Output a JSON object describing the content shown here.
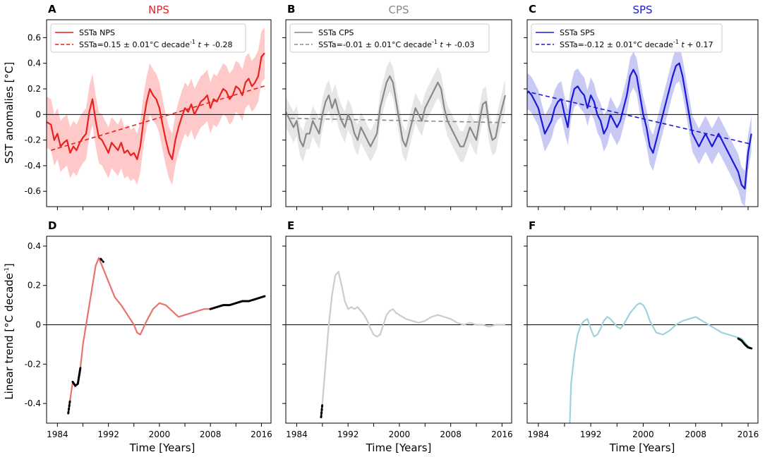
{
  "figure": {
    "x_axis_label": "Time [Years]",
    "y_axis_label_top": "SST anomalies [°C]",
    "y_axis_label_bottom": "Linear trend [°C decade",
    "y_axis_label_bottom_sup": "-1",
    "y_axis_label_bottom_tail": "]"
  },
  "chart_data": [
    {
      "panel": "A",
      "title": "NPS",
      "color": "#e8221e",
      "band_color": "#ffc9c9",
      "type": "line",
      "xlim": [
        1982.3,
        2017.5
      ],
      "ylim": [
        -0.72,
        0.74
      ],
      "yticks": [
        -0.6,
        -0.4,
        -0.2,
        0,
        0.2,
        0.4,
        0.6
      ],
      "ytick_labels": [
        "-0.6",
        "-0.4",
        "-0.2",
        "0",
        "0.2",
        "0.4",
        "0.6"
      ],
      "xticks": [
        1984,
        1988,
        1992,
        1996,
        2000,
        2004,
        2008,
        2012,
        2016
      ],
      "xtick_labels": [],
      "legend": {
        "series_label": "SSTa NPS",
        "fit_prefix": "SSTa=0.15 ± 0.01°C decade",
        "fit_sup": "-1",
        "fit_var": "t",
        "fit_suffix": " + -0.28"
      },
      "series": {
        "x": [
          1982.0,
          1983.0,
          1983.5,
          1984.0,
          1984.5,
          1985.0,
          1985.5,
          1986.0,
          1986.5,
          1987.0,
          1987.5,
          1988.0,
          1988.5,
          1989.0,
          1989.5,
          1990.0,
          1990.5,
          1991.0,
          1991.5,
          1992.0,
          1992.5,
          1993.0,
          1993.5,
          1994.0,
          1994.5,
          1995.0,
          1995.5,
          1996.0,
          1996.5,
          1997.0,
          1997.5,
          1998.0,
          1998.5,
          1999.0,
          1999.5,
          2000.0,
          2000.5,
          2001.0,
          2001.5,
          2002.0,
          2002.5,
          2003.0,
          2003.5,
          2004.0,
          2004.5,
          2005.0,
          2005.5,
          2006.0,
          2006.5,
          2007.0,
          2007.5,
          2008.0,
          2008.5,
          2009.0,
          2009.5,
          2010.0,
          2010.5,
          2011.0,
          2011.5,
          2012.0,
          2012.5,
          2013.0,
          2013.5,
          2014.0,
          2014.5,
          2015.0,
          2015.5,
          2016.0,
          2016.5
        ],
        "y": [
          -0.05,
          -0.08,
          -0.2,
          -0.15,
          -0.25,
          -0.22,
          -0.2,
          -0.3,
          -0.25,
          -0.28,
          -0.22,
          -0.18,
          -0.15,
          0.02,
          0.12,
          -0.05,
          -0.18,
          -0.2,
          -0.25,
          -0.3,
          -0.22,
          -0.25,
          -0.28,
          -0.22,
          -0.3,
          -0.28,
          -0.32,
          -0.3,
          -0.35,
          -0.25,
          -0.05,
          0.1,
          0.2,
          0.15,
          0.12,
          0.05,
          -0.08,
          -0.2,
          -0.3,
          -0.35,
          -0.2,
          -0.1,
          -0.02,
          0.05,
          0.02,
          0.08,
          0.0,
          0.05,
          0.1,
          0.12,
          0.15,
          0.05,
          0.12,
          0.1,
          0.15,
          0.2,
          0.18,
          0.12,
          0.15,
          0.22,
          0.2,
          0.15,
          0.25,
          0.28,
          0.22,
          0.25,
          0.3,
          0.45,
          0.48
        ],
        "band_width": 0.2
      },
      "fit": {
        "slope_per_decade": 0.15,
        "intercept": -0.28,
        "x_start": 1983.0,
        "x_end": 2016.5
      }
    },
    {
      "panel": "B",
      "title": "CPS",
      "color": "#888888",
      "band_color": "#e6e6e6",
      "type": "line",
      "xlim": [
        1982.3,
        2017.5
      ],
      "ylim": [
        -0.72,
        0.74
      ],
      "yticks": [
        -0.6,
        -0.4,
        -0.2,
        0,
        0.2,
        0.4,
        0.6
      ],
      "ytick_labels": [],
      "xticks": [
        1984,
        1988,
        1992,
        1996,
        2000,
        2004,
        2008,
        2012,
        2016
      ],
      "xtick_labels": [],
      "legend": {
        "series_label": "SSTa CPS",
        "fit_prefix": "SSTa=-0.01 ± 0.01°C decade",
        "fit_sup": "-1",
        "fit_var": "t",
        "fit_suffix": " + -0.03"
      },
      "series": {
        "x": [
          1982.0,
          1982.5,
          1983.0,
          1983.5,
          1984.0,
          1984.5,
          1985.0,
          1985.5,
          1986.0,
          1986.5,
          1987.0,
          1987.5,
          1988.0,
          1988.5,
          1989.0,
          1989.5,
          1990.0,
          1990.5,
          1991.0,
          1991.5,
          1992.0,
          1992.5,
          1993.0,
          1993.5,
          1994.0,
          1994.5,
          1995.0,
          1995.5,
          1996.0,
          1996.5,
          1997.0,
          1997.5,
          1998.0,
          1998.5,
          1999.0,
          1999.5,
          2000.0,
          2000.5,
          2001.0,
          2001.5,
          2002.0,
          2002.5,
          2003.0,
          2003.5,
          2004.0,
          2004.5,
          2005.0,
          2005.5,
          2006.0,
          2006.5,
          2007.0,
          2007.5,
          2008.0,
          2008.5,
          2009.0,
          2009.5,
          2010.0,
          2010.5,
          2011.0,
          2011.5,
          2012.0,
          2012.5,
          2013.0,
          2013.5,
          2014.0,
          2014.5,
          2015.0,
          2015.5,
          2016.0,
          2016.5
        ],
        "y": [
          0.05,
          0.0,
          -0.05,
          -0.1,
          -0.05,
          -0.2,
          -0.25,
          -0.15,
          -0.15,
          -0.05,
          -0.1,
          -0.15,
          0.0,
          0.1,
          0.15,
          0.05,
          0.12,
          0.02,
          -0.05,
          -0.1,
          0.0,
          -0.05,
          -0.15,
          -0.2,
          -0.1,
          -0.15,
          -0.2,
          -0.25,
          -0.2,
          -0.15,
          0.05,
          0.15,
          0.25,
          0.3,
          0.25,
          0.1,
          -0.05,
          -0.2,
          -0.25,
          -0.15,
          -0.05,
          0.05,
          0.0,
          -0.05,
          0.05,
          0.1,
          0.15,
          0.2,
          0.25,
          0.2,
          0.05,
          -0.05,
          -0.1,
          -0.15,
          -0.2,
          -0.25,
          -0.25,
          -0.18,
          -0.1,
          -0.15,
          -0.2,
          -0.05,
          0.08,
          0.1,
          -0.1,
          -0.2,
          -0.18,
          -0.05,
          0.05,
          0.15
        ],
        "band_width": 0.12
      },
      "fit": {
        "slope_per_decade": -0.01,
        "intercept": -0.03,
        "x_start": 1983.0,
        "x_end": 2016.5
      }
    },
    {
      "panel": "C",
      "title": "SPS",
      "color": "#1a1ad6",
      "band_color": "#c9c9f5",
      "type": "line",
      "xlim": [
        1982.3,
        2017.5
      ],
      "ylim": [
        -0.72,
        0.74
      ],
      "yticks": [
        -0.6,
        -0.4,
        -0.2,
        0,
        0.2,
        0.4,
        0.6
      ],
      "ytick_labels": [],
      "xticks": [
        1984,
        1988,
        1992,
        1996,
        2000,
        2004,
        2008,
        2012,
        2016
      ],
      "xtick_labels": [],
      "legend": {
        "series_label": "SSTa SPS",
        "fit_prefix": "SSTa=-0.12 ± 0.01°C decade",
        "fit_sup": "-1",
        "fit_var": "t",
        "fit_suffix": " + 0.17"
      },
      "series": {
        "x": [
          1982.0,
          1982.5,
          1983.0,
          1983.5,
          1984.0,
          1984.5,
          1985.0,
          1985.5,
          1986.0,
          1986.5,
          1987.0,
          1987.5,
          1988.0,
          1988.5,
          1989.0,
          1989.5,
          1990.0,
          1990.5,
          1991.0,
          1991.5,
          1992.0,
          1992.5,
          1993.0,
          1993.5,
          1994.0,
          1994.5,
          1995.0,
          1995.5,
          1996.0,
          1996.5,
          1997.0,
          1997.5,
          1998.0,
          1998.5,
          1999.0,
          1999.5,
          2000.0,
          2000.5,
          2001.0,
          2001.5,
          2002.0,
          2002.5,
          2003.0,
          2003.5,
          2004.0,
          2004.5,
          2005.0,
          2005.5,
          2006.0,
          2006.5,
          2007.0,
          2007.5,
          2008.0,
          2008.5,
          2009.0,
          2009.5,
          2010.0,
          2010.5,
          2011.0,
          2011.5,
          2012.0,
          2012.5,
          2013.0,
          2013.5,
          2014.0,
          2014.5,
          2015.0,
          2015.5,
          2016.0,
          2016.5
        ],
        "y": [
          0.15,
          0.18,
          0.15,
          0.1,
          0.05,
          -0.05,
          -0.15,
          -0.1,
          -0.05,
          0.05,
          0.1,
          0.12,
          0.0,
          -0.1,
          0.1,
          0.2,
          0.22,
          0.18,
          0.15,
          0.05,
          0.15,
          0.1,
          0.0,
          -0.05,
          -0.15,
          -0.1,
          0.0,
          -0.05,
          -0.1,
          -0.05,
          0.05,
          0.15,
          0.3,
          0.35,
          0.3,
          0.15,
          0.0,
          -0.1,
          -0.25,
          -0.3,
          -0.2,
          -0.1,
          0.0,
          0.1,
          0.2,
          0.3,
          0.38,
          0.4,
          0.3,
          0.15,
          0.0,
          -0.15,
          -0.2,
          -0.25,
          -0.2,
          -0.15,
          -0.2,
          -0.25,
          -0.2,
          -0.15,
          -0.2,
          -0.25,
          -0.3,
          -0.35,
          -0.4,
          -0.45,
          -0.55,
          -0.58,
          -0.3,
          -0.15
        ],
        "band_width": 0.14
      },
      "fit": {
        "slope_per_decade": -0.12,
        "intercept": 0.17,
        "x_start": 1983.0,
        "x_end": 2016.5
      }
    },
    {
      "panel": "D",
      "title": "",
      "color": "#e8726d",
      "highlight_color": "#000000",
      "type": "line",
      "xlim": [
        1982.3,
        2017.5
      ],
      "ylim": [
        -0.5,
        0.45
      ],
      "yticks": [
        -0.4,
        -0.2,
        0,
        0.2,
        0.4
      ],
      "ytick_labels": [
        "-0.4",
        "-0.2",
        "0",
        "0.2",
        "0.4"
      ],
      "xticks": [
        1984,
        1988,
        1992,
        1996,
        2000,
        2004,
        2008,
        2012,
        2016
      ],
      "xtick_labels": [
        "1984",
        "1992",
        "2000",
        "2008",
        "2016"
      ],
      "xtick_label_values": [
        1984,
        1992,
        2000,
        2008,
        2016
      ],
      "series": {
        "x": [
          1985.7,
          1986.0,
          1986.4,
          1986.8,
          1987.2,
          1987.6,
          1988.0,
          1988.5,
          1989.0,
          1989.5,
          1990.0,
          1990.5,
          1991.0,
          1991.5,
          1992.0,
          1992.5,
          1993.0,
          1994.0,
          1995.0,
          1996.0,
          1996.5,
          1997.0,
          1998.0,
          1999.0,
          2000.0,
          2001.0,
          2002.0,
          2003.0,
          2004.0,
          2005.0,
          2006.0,
          2007.0,
          2008.0,
          2009.0,
          2010.0,
          2011.0,
          2012.0,
          2013.0,
          2014.0,
          2015.0,
          2016.0,
          2016.5
        ],
        "y": [
          -0.45,
          -0.38,
          -0.29,
          -0.31,
          -0.3,
          -0.22,
          -0.1,
          0.0,
          0.1,
          0.2,
          0.3,
          0.34,
          0.3,
          0.26,
          0.22,
          0.18,
          0.14,
          0.1,
          0.05,
          0.0,
          -0.04,
          -0.05,
          0.02,
          0.08,
          0.11,
          0.1,
          0.07,
          0.04,
          0.05,
          0.06,
          0.07,
          0.08,
          0.08,
          0.09,
          0.1,
          0.1,
          0.11,
          0.12,
          0.12,
          0.13,
          0.14,
          0.145
        ]
      },
      "highlight": [
        {
          "x": [
            1985.7,
            1986.0
          ],
          "y": [
            -0.45,
            -0.38
          ]
        },
        {
          "x": [
            1986.4,
            1986.8,
            1987.2,
            1987.6
          ],
          "y": [
            -0.29,
            -0.31,
            -0.3,
            -0.22
          ]
        },
        {
          "x": [
            1990.8,
            1991.2
          ],
          "y": [
            0.335,
            0.32
          ]
        },
        {
          "x": [
            2008.0,
            2009.0,
            2010.0,
            2011.0,
            2012.0,
            2013.0,
            2014.0,
            2015.0,
            2016.0,
            2016.5
          ],
          "y": [
            0.08,
            0.09,
            0.1,
            0.1,
            0.11,
            0.12,
            0.12,
            0.13,
            0.14,
            0.145
          ]
        }
      ]
    },
    {
      "panel": "E",
      "title": "",
      "color": "#cccccc",
      "highlight_color": "#000000",
      "type": "line",
      "xlim": [
        1982.3,
        2017.5
      ],
      "ylim": [
        -0.5,
        0.45
      ],
      "yticks": [
        -0.4,
        -0.2,
        0,
        0.2,
        0.4
      ],
      "ytick_labels": [],
      "xticks": [
        1984,
        1988,
        1992,
        1996,
        2000,
        2004,
        2008,
        2012,
        2016
      ],
      "xtick_labels": [
        "1984",
        "1992",
        "2000",
        "2008",
        "2016"
      ],
      "xtick_label_values": [
        1984,
        1992,
        2000,
        2008,
        2016
      ],
      "series": {
        "x": [
          1987.8,
          1988.0,
          1988.5,
          1989.0,
          1989.5,
          1990.0,
          1990.5,
          1991.0,
          1991.5,
          1992.0,
          1992.5,
          1993.0,
          1993.5,
          1994.0,
          1994.5,
          1995.0,
          1995.5,
          1996.0,
          1996.5,
          1997.0,
          1997.5,
          1998.0,
          1998.5,
          1999.0,
          1999.5,
          2000.0,
          2001.0,
          2002.0,
          2003.0,
          2004.0,
          2005.0,
          2006.0,
          2007.0,
          2008.0,
          2009.0,
          2010.0,
          2011.0,
          2012.0,
          2013.0,
          2014.0,
          2015.0,
          2016.0,
          2016.5
        ],
        "y": [
          -0.47,
          -0.4,
          -0.2,
          0.0,
          0.15,
          0.25,
          0.27,
          0.2,
          0.12,
          0.08,
          0.09,
          0.08,
          0.09,
          0.07,
          0.05,
          0.02,
          -0.02,
          -0.05,
          -0.06,
          -0.05,
          0.0,
          0.05,
          0.07,
          0.08,
          0.06,
          0.05,
          0.03,
          0.02,
          0.01,
          0.02,
          0.04,
          0.05,
          0.04,
          0.03,
          0.01,
          0.0,
          0.01,
          0.0,
          0.0,
          -0.01,
          0.0,
          0.0,
          0.0
        ]
      },
      "highlight": [
        {
          "x": [
            1987.8,
            1988.0
          ],
          "y": [
            -0.47,
            -0.4
          ]
        }
      ]
    },
    {
      "panel": "F",
      "title": "",
      "color": "#9fd2e0",
      "highlight_color": "#000000",
      "type": "line",
      "xlim": [
        1982.3,
        2017.5
      ],
      "ylim": [
        -0.5,
        0.45
      ],
      "yticks": [
        -0.4,
        -0.2,
        0,
        0.2,
        0.4
      ],
      "ytick_labels": [],
      "xticks": [
        1984,
        1988,
        1992,
        1996,
        2000,
        2004,
        2008,
        2012,
        2016
      ],
      "xtick_labels": [
        "1984",
        "1992",
        "2000",
        "2008",
        "2016"
      ],
      "xtick_label_values": [
        1984,
        1992,
        2000,
        2008,
        2016
      ],
      "series": {
        "x": [
          1988.8,
          1989.0,
          1989.5,
          1990.0,
          1990.5,
          1991.0,
          1991.5,
          1992.0,
          1992.5,
          1993.0,
          1993.5,
          1994.0,
          1994.5,
          1995.0,
          1995.5,
          1996.0,
          1996.5,
          1997.0,
          1997.5,
          1998.0,
          1998.5,
          1999.0,
          1999.5,
          2000.0,
          2000.5,
          2001.0,
          2002.0,
          2003.0,
          2004.0,
          2005.0,
          2006.0,
          2007.0,
          2008.0,
          2009.0,
          2010.0,
          2011.0,
          2012.0,
          2013.0,
          2014.0,
          2015.0,
          2015.5,
          2016.0,
          2016.5
        ],
        "y": [
          -0.5,
          -0.3,
          -0.15,
          -0.05,
          0.0,
          0.02,
          0.03,
          -0.02,
          -0.06,
          -0.05,
          -0.02,
          0.02,
          0.04,
          0.03,
          0.01,
          -0.01,
          -0.02,
          0.0,
          0.03,
          0.06,
          0.08,
          0.1,
          0.11,
          0.1,
          0.07,
          0.02,
          -0.04,
          -0.05,
          -0.03,
          0.0,
          0.02,
          0.03,
          0.04,
          0.02,
          0.0,
          -0.02,
          -0.04,
          -0.05,
          -0.06,
          -0.07,
          -0.09,
          -0.11,
          -0.12
        ]
      },
      "highlight": [
        {
          "x": [
            2014.5,
            2015.0,
            2015.5,
            2016.0,
            2016.5
          ],
          "y": [
            -0.07,
            -0.08,
            -0.1,
            -0.115,
            -0.12
          ]
        }
      ]
    }
  ]
}
